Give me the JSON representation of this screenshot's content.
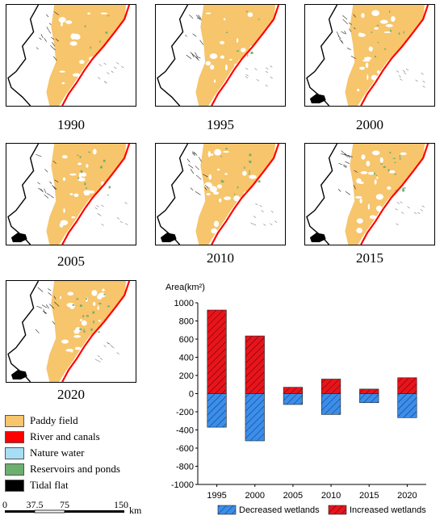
{
  "maps": [
    {
      "year": "1990"
    },
    {
      "year": "1995"
    },
    {
      "year": "2000"
    },
    {
      "year": "2005"
    },
    {
      "year": "2010"
    },
    {
      "year": "2015"
    },
    {
      "year": "2020"
    }
  ],
  "legend": [
    {
      "label": "Paddy field",
      "color": "#F6C56C"
    },
    {
      "label": "River and canals",
      "color": "#FF0000"
    },
    {
      "label": "Nature water",
      "color": "#A7DEF3"
    },
    {
      "label": "Reservoirs and ponds",
      "color": "#6DAF6F"
    },
    {
      "label": "Tidal flat",
      "color": "#000000"
    }
  ],
  "scale_bar": {
    "ticks": [
      "0",
      "37.5",
      "75",
      "150"
    ],
    "unit": "km"
  },
  "chart_data": {
    "type": "bar",
    "ylabel": "Area(km²)",
    "ylim": [
      -1000,
      1000
    ],
    "yticks": [
      1000,
      800,
      600,
      400,
      200,
      0,
      -200,
      -400,
      -600,
      -800,
      -1000
    ],
    "categories": [
      "1995",
      "2000",
      "2005",
      "2010",
      "2015",
      "2020"
    ],
    "series": [
      {
        "name": "Decreased wetlands",
        "color": "#3B8EEA",
        "values": [
          -370,
          -520,
          -120,
          -230,
          -100,
          -265
        ]
      },
      {
        "name": "Increased wetlands",
        "color": "#E8141C",
        "values": [
          920,
          635,
          70,
          160,
          50,
          175
        ]
      }
    ],
    "stacked": true,
    "legend_position": "bottom"
  }
}
